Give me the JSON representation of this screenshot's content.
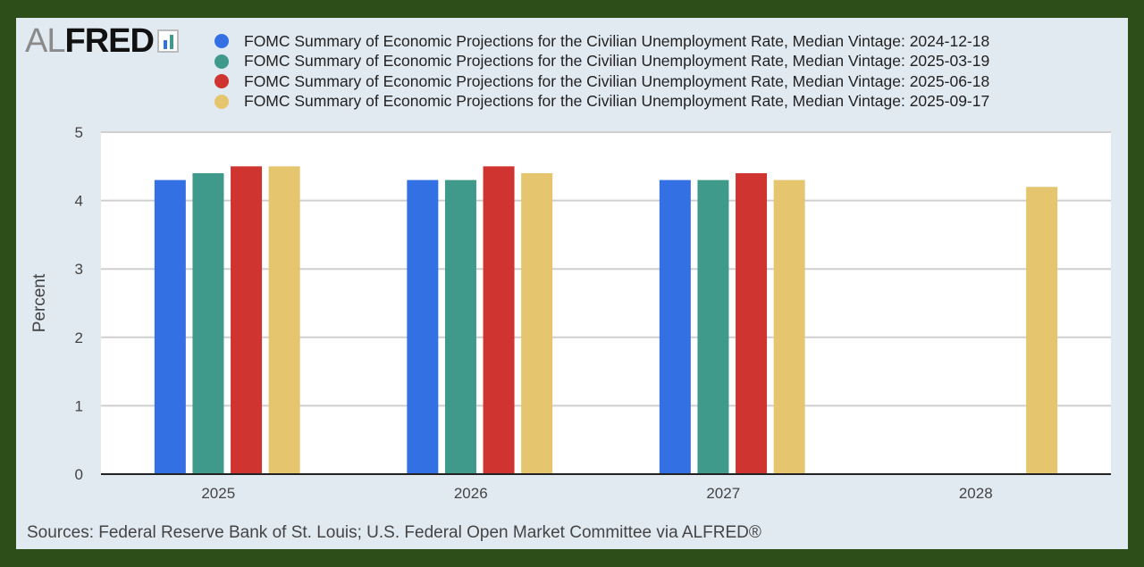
{
  "logo_text": "ALFRED",
  "chart_data": {
    "type": "bar",
    "title": "",
    "xlabel": "",
    "ylabel": "Percent",
    "ylim": [
      0,
      5
    ],
    "yticks": [
      "0",
      "1",
      "2",
      "3",
      "4",
      "5"
    ],
    "categories": [
      "2025",
      "2026",
      "2027",
      "2028"
    ],
    "grid": true,
    "legend_position": "top",
    "series": [
      {
        "name": "FOMC Summary of Economic Projections for the Civilian Unemployment Rate, Median Vintage: 2024-12-18",
        "color": "#3370e4",
        "values": [
          4.3,
          4.3,
          4.3,
          null
        ]
      },
      {
        "name": "FOMC Summary of Economic Projections for the Civilian Unemployment Rate, Median Vintage: 2025-03-19",
        "color": "#3f9a8c",
        "values": [
          4.4,
          4.3,
          4.3,
          null
        ]
      },
      {
        "name": "FOMC Summary of Economic Projections for the Civilian Unemployment Rate, Median Vintage: 2025-06-18",
        "color": "#cf3430",
        "values": [
          4.5,
          4.5,
          4.4,
          null
        ]
      },
      {
        "name": "FOMC Summary of Economic Projections for the Civilian Unemployment Rate, Median Vintage: 2025-09-17",
        "color": "#e5c56e",
        "values": [
          4.5,
          4.4,
          4.3,
          4.2
        ]
      }
    ]
  },
  "source": "Sources: Federal Reserve Bank of St. Louis; U.S. Federal Open Market Committee via ALFRED®"
}
